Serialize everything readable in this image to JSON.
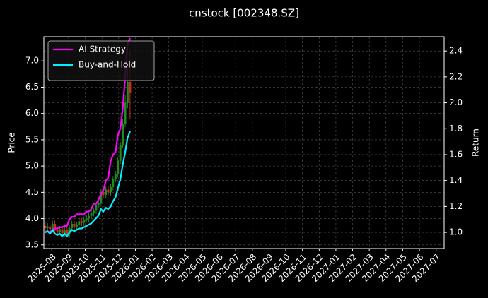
{
  "chart_data": {
    "type": "candlestick",
    "title": "cnstock [002348.SZ]",
    "ylabel": "Price",
    "y2label": "Return",
    "x": [
      -0.4,
      -0.26,
      -0.11,
      0.04,
      0.18,
      0.33,
      0.47,
      0.62,
      0.76,
      0.91,
      1.05,
      1.2,
      1.34,
      1.49,
      1.63,
      1.78,
      1.92,
      2.07,
      2.21,
      2.36,
      2.5,
      2.65,
      2.79,
      2.94,
      3.08,
      3.23,
      3.37,
      3.52,
      3.66,
      3.81,
      3.95,
      4.1,
      4.24,
      4.39,
      4.53,
      4.68
    ],
    "open": [
      3.86,
      3.82,
      3.85,
      3.8,
      3.9,
      3.78,
      3.75,
      3.8,
      3.72,
      3.78,
      3.7,
      3.82,
      3.9,
      3.85,
      3.88,
      3.95,
      3.92,
      3.98,
      4.0,
      4.05,
      4.1,
      4.15,
      4.25,
      4.3,
      4.5,
      4.45,
      4.55,
      4.5,
      4.6,
      4.75,
      4.85,
      5.1,
      5.4,
      5.8,
      6.2,
      6.6
    ],
    "high": [
      3.92,
      3.91,
      3.91,
      3.96,
      3.96,
      3.84,
      3.86,
      3.86,
      3.84,
      3.84,
      3.88,
      3.96,
      3.96,
      3.94,
      4.01,
      4.01,
      4.04,
      4.06,
      4.11,
      4.16,
      4.21,
      4.31,
      4.36,
      4.56,
      4.56,
      4.61,
      4.61,
      4.66,
      4.81,
      4.91,
      5.16,
      5.46,
      5.9,
      6.35,
      6.85,
      7.2
    ],
    "low": [
      3.76,
      3.76,
      3.74,
      3.74,
      3.72,
      3.69,
      3.69,
      3.66,
      3.66,
      3.64,
      3.64,
      3.76,
      3.79,
      3.79,
      3.82,
      3.86,
      3.86,
      3.92,
      3.94,
      3.99,
      4.04,
      4.09,
      4.19,
      4.24,
      4.39,
      4.39,
      4.44,
      4.44,
      4.54,
      4.69,
      4.79,
      5.04,
      5.34,
      5.74,
      6.1,
      5.9
    ],
    "close": [
      3.82,
      3.85,
      3.8,
      3.9,
      3.78,
      3.75,
      3.8,
      3.72,
      3.78,
      3.7,
      3.82,
      3.9,
      3.85,
      3.88,
      3.95,
      3.92,
      3.98,
      4.0,
      4.05,
      4.1,
      4.15,
      4.25,
      4.3,
      4.5,
      4.45,
      4.55,
      4.5,
      4.6,
      4.75,
      4.85,
      5.1,
      5.4,
      5.8,
      6.2,
      6.6,
      6.4
    ],
    "up_color": "#1e8c1e",
    "down_color": "#d42a1a",
    "series": [
      {
        "name": "AI Strategy",
        "color": "#ff00ff",
        "axis": "y2",
        "values": [
          1.0,
          1.01,
          1.0,
          1.02,
          1.03,
          1.03,
          1.04,
          1.04,
          1.05,
          1.05,
          1.1,
          1.12,
          1.12,
          1.14,
          1.14,
          1.14,
          1.14,
          1.16,
          1.16,
          1.18,
          1.22,
          1.22,
          1.25,
          1.3,
          1.32,
          1.4,
          1.42,
          1.55,
          1.6,
          1.62,
          1.75,
          1.8,
          1.95,
          2.2,
          2.45,
          2.5
        ]
      },
      {
        "name": "Buy-and-Hold",
        "color": "#00f0ff",
        "axis": "y2",
        "values": [
          1.0,
          1.01,
          0.99,
          1.02,
          0.99,
          0.98,
          0.99,
          0.97,
          0.99,
          0.97,
          1.0,
          1.02,
          1.01,
          1.02,
          1.03,
          1.03,
          1.04,
          1.05,
          1.06,
          1.07,
          1.09,
          1.11,
          1.13,
          1.18,
          1.16,
          1.19,
          1.18,
          1.2,
          1.24,
          1.27,
          1.34,
          1.41,
          1.52,
          1.62,
          1.73,
          1.78
        ]
      }
    ],
    "xlim": [
      -0.48,
      23.48
    ],
    "xticks": [
      {
        "value": 0,
        "label": "2025-08"
      },
      {
        "value": 1,
        "label": "2025-09"
      },
      {
        "value": 2,
        "label": "2025-10"
      },
      {
        "value": 3,
        "label": "2025-11"
      },
      {
        "value": 4,
        "label": "2025-12"
      },
      {
        "value": 5,
        "label": "2026-01"
      },
      {
        "value": 6,
        "label": "2026-02"
      },
      {
        "value": 7,
        "label": "2026-03"
      },
      {
        "value": 8,
        "label": "2026-04"
      },
      {
        "value": 9,
        "label": "2026-05"
      },
      {
        "value": 10,
        "label": "2026-06"
      },
      {
        "value": 11,
        "label": "2026-07"
      },
      {
        "value": 12,
        "label": "2026-08"
      },
      {
        "value": 13,
        "label": "2026-09"
      },
      {
        "value": 14,
        "label": "2026-10"
      },
      {
        "value": 15,
        "label": "2026-11"
      },
      {
        "value": 16,
        "label": "2026-12"
      },
      {
        "value": 17,
        "label": "2027-01"
      },
      {
        "value": 18,
        "label": "2027-02"
      },
      {
        "value": 19,
        "label": "2027-03"
      },
      {
        "value": 20,
        "label": "2027-04"
      },
      {
        "value": 21,
        "label": "2027-05"
      },
      {
        "value": 22,
        "label": "2027-06"
      },
      {
        "value": 23,
        "label": "2027-07"
      }
    ],
    "ylim": [
      3.43,
      7.46
    ],
    "yticks": [
      3.5,
      {
        "value": 4.0,
        "label": "4.0"
      },
      4.5,
      {
        "value": 5.0,
        "label": "5.0"
      },
      5.5,
      {
        "value": 6.0,
        "label": "6.0"
      },
      6.5,
      {
        "value": 7.0,
        "label": "7.0"
      }
    ],
    "y2lim": [
      0.875,
      2.51
    ],
    "y2ticks": [
      {
        "value": 1.0,
        "label": "1.0"
      },
      1.2,
      1.4,
      1.6,
      1.8,
      {
        "value": 2.0,
        "label": "2.0"
      },
      2.2,
      2.4
    ],
    "grid": true,
    "legend": "upper left"
  }
}
